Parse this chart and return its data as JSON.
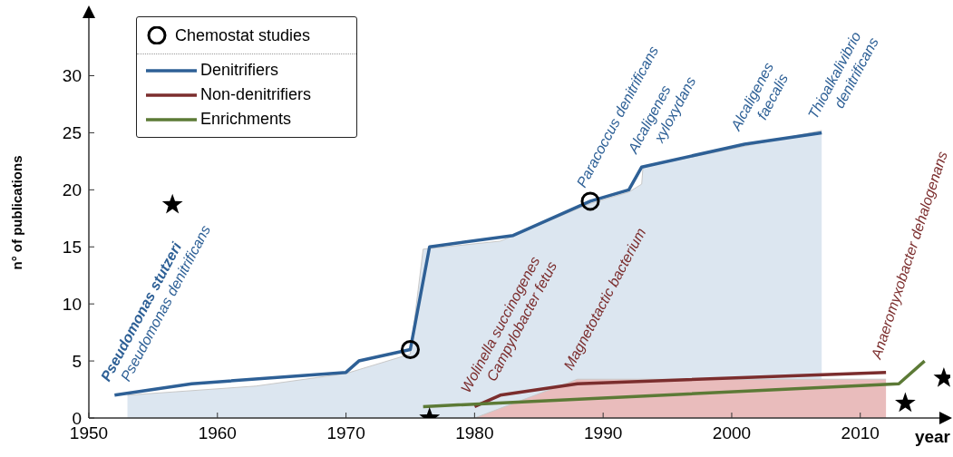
{
  "chart_data": {
    "type": "line",
    "xlabel": "year",
    "ylabel": "n° of publications",
    "xlim": [
      1950,
      2017
    ],
    "ylim": [
      0,
      36
    ],
    "xticks": [
      1950,
      1960,
      1970,
      1980,
      1990,
      2000,
      2010
    ],
    "yticks": [
      0,
      5,
      10,
      15,
      20,
      25,
      30
    ],
    "grid": false,
    "legend": "top left",
    "series": [
      {
        "type": "area",
        "color": "#dce6f0",
        "x": [
          1953,
          1963,
          1970,
          1975,
          1976,
          1982,
          1989,
          1992,
          1993,
          1993.1,
          2007
        ],
        "values": [
          2,
          2.8,
          3.9,
          5.6,
          14.8,
          15.5,
          18.8,
          19.8,
          20.5,
          22,
          25.2
        ]
      },
      {
        "type": "area",
        "color": "#e9bcbc",
        "x": [
          1980,
          1988,
          2012
        ],
        "values": [
          0,
          3.4,
          3.4
        ]
      },
      {
        "name": "Denitrifiers",
        "color": "#2e6096",
        "x": [
          1952,
          1958,
          1970,
          1971,
          1975,
          1976.5,
          1983,
          1989,
          1992,
          1993,
          2001,
          2007
        ],
        "values": [
          2,
          3,
          4,
          5,
          6,
          15,
          16,
          19,
          20,
          22,
          24,
          25
        ]
      },
      {
        "name": "Non-denitrifiers",
        "color": "#7b2d2d",
        "x": [
          1980,
          1982,
          1988,
          2012
        ],
        "values": [
          1,
          2,
          3,
          4
        ]
      },
      {
        "name": "Enrichments",
        "color": "#5c7a36",
        "x": [
          1976,
          2013,
          2015
        ],
        "values": [
          1,
          3,
          5
        ]
      },
      {
        "type": "scatter",
        "name": "Chemostat studies",
        "color": "#000000",
        "marker": "circle",
        "x": [
          1975,
          1989
        ],
        "values": [
          6,
          19
        ]
      },
      {
        "type": "scatter",
        "color": "#000000",
        "marker": "star",
        "x": [
          1956.5,
          1976.5,
          2013.5,
          2016.5
        ],
        "values": [
          18.7,
          0,
          1.3,
          3.5
        ]
      }
    ],
    "annotations": [
      {
        "text": "Pseudomonas stutzeri",
        "x": 1952,
        "y": 2
      },
      {
        "text": "Pseudomonas denitrificans",
        "x": 1952,
        "y": 2
      },
      {
        "text": "Paracoccus denitrificans",
        "x": 1989,
        "y": 19
      },
      {
        "text": "Alcaligenes\nxyloxydans",
        "x": 1993,
        "y": 22
      },
      {
        "text": "Alcaligenes\nfaecalis",
        "x": 2001,
        "y": 24
      },
      {
        "text": "Thioalkalivibrio\ndenitrificans",
        "x": 2007,
        "y": 25
      },
      {
        "text": "Wolinella succinogenes",
        "x": 1980,
        "y": 1
      },
      {
        "text": "Campylobacter fetus",
        "x": 1982,
        "y": 2
      },
      {
        "text": "Magnetotactic bacterium",
        "x": 1988,
        "y": 3
      },
      {
        "text": "Anaeromyxobacter dehalogenans",
        "x": 2012,
        "y": 4
      }
    ]
  }
}
